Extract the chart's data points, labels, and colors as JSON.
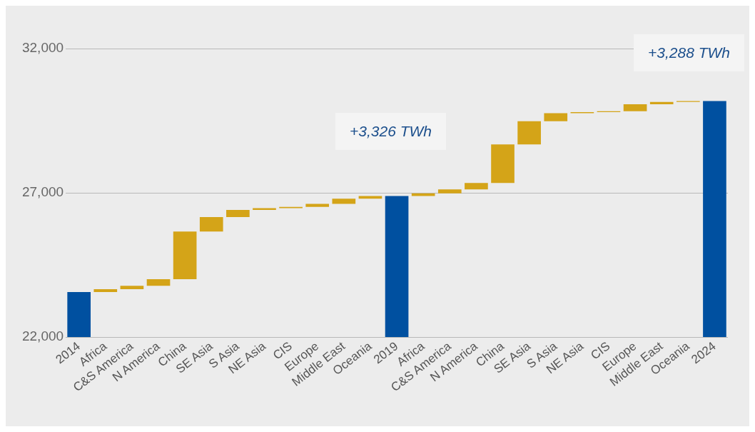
{
  "chart_data": {
    "type": "bar",
    "categories": [
      "2014",
      "Africa",
      "C&S America",
      "N America",
      "China",
      "SE Asia",
      "S Asia",
      "NE Asia",
      "CIS",
      "Europe",
      "Middle East",
      "Oceania",
      "2019",
      "Africa",
      "C&S America",
      "N America",
      "China",
      "SE Asia",
      "S Asia",
      "NE Asia",
      "CIS",
      "Europe",
      "Middle East",
      "Oceania",
      "2024"
    ],
    "values": [
      23560,
      100,
      120,
      230,
      1650,
      500,
      250,
      60,
      40,
      110,
      180,
      90,
      26890,
      90,
      140,
      220,
      1340,
      800,
      280,
      40,
      30,
      240,
      80,
      30,
      30180
    ],
    "base": [
      null,
      23560,
      23660,
      23780,
      24010,
      25660,
      26160,
      26410,
      26470,
      26510,
      26620,
      26800,
      null,
      26890,
      26980,
      27120,
      27340,
      28680,
      29480,
      29760,
      29800,
      29830,
      30070,
      30150,
      null
    ],
    "colors": [
      "#0050a0",
      "#d4a418",
      "#d4a418",
      "#d4a418",
      "#d4a418",
      "#d4a418",
      "#d4a418",
      "#d4a418",
      "#d4a418",
      "#d4a418",
      "#d4a418",
      "#d4a418",
      "#0050a0",
      "#d4a418",
      "#d4a418",
      "#d4a418",
      "#d4a418",
      "#d4a418",
      "#d4a418",
      "#d4a418",
      "#d4a418",
      "#d4a418",
      "#d4a418",
      "#d4a418",
      "#0050a0"
    ],
    "ylim": [
      22000,
      32000
    ],
    "yticks": [
      {
        "value": 22000,
        "label": "22,000"
      },
      {
        "value": 27000,
        "label": "27,000"
      },
      {
        "value": 32000,
        "label": "32,000"
      }
    ],
    "grid": "y",
    "legend": false,
    "annotations": [
      "+3,326 TWh",
      "+3,288 TWh"
    ]
  }
}
